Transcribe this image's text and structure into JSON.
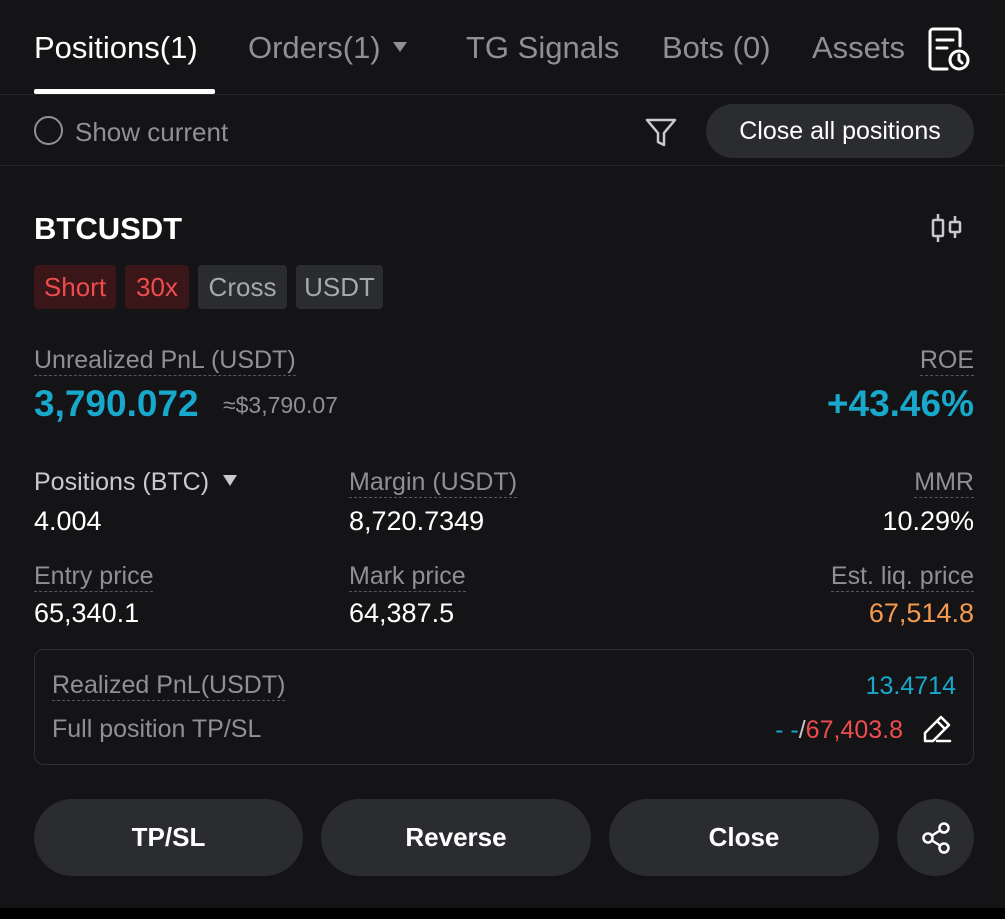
{
  "tabs": {
    "positions": "Positions(1)",
    "orders": "Orders(1)",
    "tg_signals": "TG Signals",
    "bots": "Bots (0)",
    "assets": "Assets"
  },
  "filter": {
    "show_current": "Show current",
    "close_all": "Close all positions"
  },
  "position": {
    "symbol": "BTCUSDT",
    "tags": {
      "side": "Short",
      "leverage": "30x",
      "margin_mode": "Cross",
      "settle": "USDT"
    },
    "upnl_label": "Unrealized PnL (USDT)",
    "upnl_value": "3,790.072",
    "upnl_approx": "≈$3,790.07",
    "roe_label": "ROE",
    "roe_value": "+43.46%",
    "size_label": "Positions (BTC)",
    "size_value": "4.004",
    "margin_label": "Margin (USDT)",
    "margin_value": "8,720.7349",
    "mmr_label": "MMR",
    "mmr_value": "10.29%",
    "entry_label": "Entry price",
    "entry_value": "65,340.1",
    "mark_label": "Mark price",
    "mark_value": "64,387.5",
    "liq_label": "Est. liq. price",
    "liq_value": "67,514.8",
    "realized_label": "Realized PnL(USDT)",
    "realized_value": "13.4714",
    "tpsl_label": "Full position TP/SL",
    "tp_value": "- -",
    "tpsl_sep": "/",
    "sl_value": "67,403.8"
  },
  "actions": {
    "tpsl": "TP/SL",
    "reverse": "Reverse",
    "close": "Close"
  },
  "colors": {
    "accent_cyan": "#17a8cc",
    "red": "#ef4c4e",
    "orange": "#f59a4e",
    "background": "#141416"
  },
  "icons": [
    "history-icon",
    "filter-icon",
    "chart-icon",
    "edit-icon",
    "share-icon"
  ]
}
